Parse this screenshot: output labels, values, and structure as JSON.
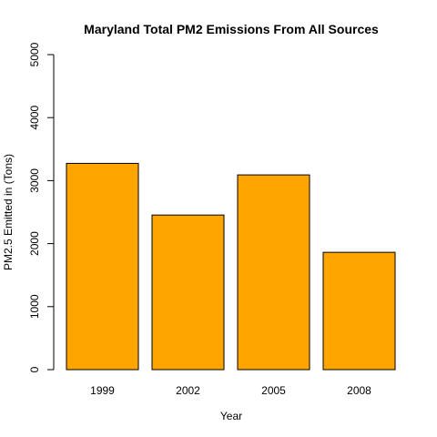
{
  "chart_data": {
    "type": "bar",
    "title": "Maryland Total PM2 Emissions From All Sources",
    "xlabel": "Year",
    "ylabel": "PM2.5 Emitted in (Tons)",
    "categories": [
      "1999",
      "2002",
      "2005",
      "2008"
    ],
    "values": [
      3274,
      2454,
      3091,
      1862
    ],
    "ylim": [
      0,
      5000
    ],
    "yticks": [
      "0",
      "1000",
      "2000",
      "3000",
      "4000",
      "5000"
    ],
    "grid": false,
    "legend": "none",
    "bar_color": "#FFA500"
  }
}
